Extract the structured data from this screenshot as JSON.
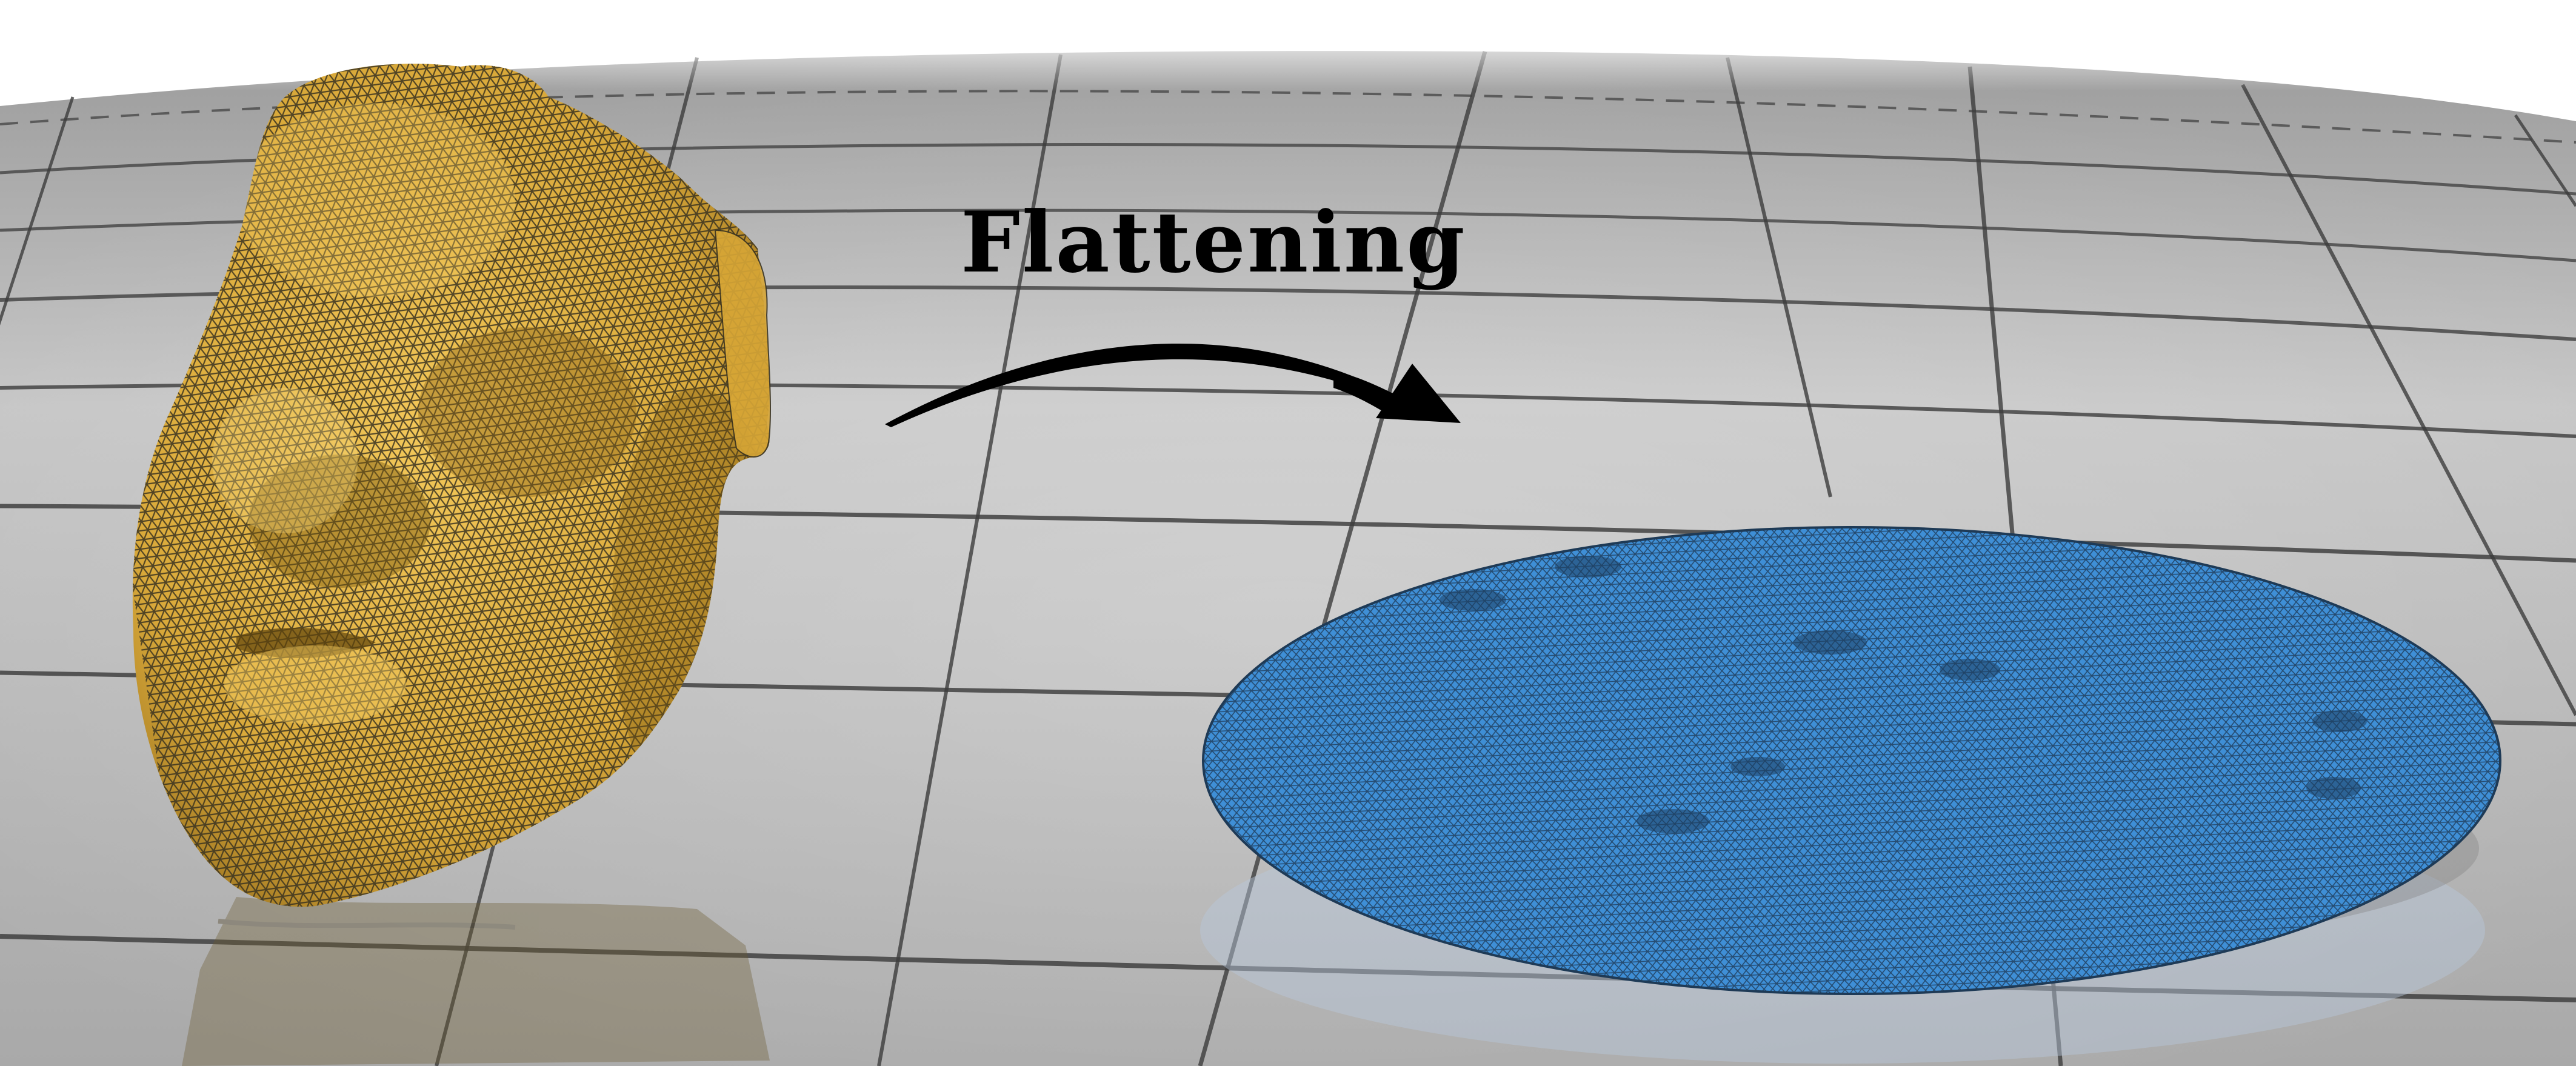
{
  "figure": {
    "label": "Flattening"
  },
  "objects": [
    {
      "name": "face-mesh",
      "shape": "3D triangle-mesh face",
      "color": "#e8b84a"
    },
    {
      "name": "disk-mesh",
      "shape": "flattened circular triangle mesh",
      "color": "#3f8fd6"
    }
  ],
  "colors": {
    "floor_light": "#cfcfcf",
    "floor_dark": "#8e8e8e",
    "floor_lines": "#3c3c3c",
    "mesh_edges": "#2d2d2d",
    "arrow": "#000000",
    "background": "#ffffff"
  }
}
